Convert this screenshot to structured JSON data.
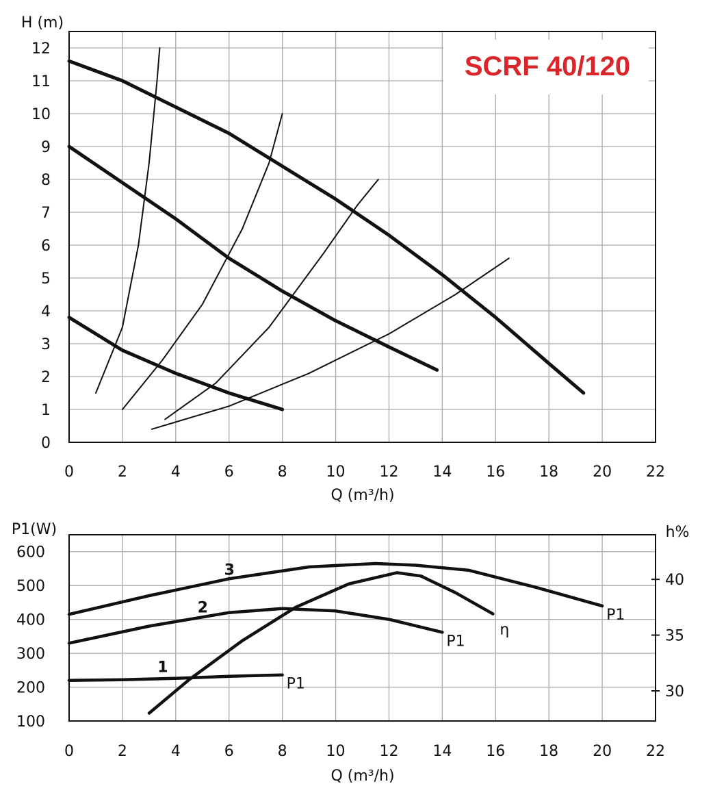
{
  "chart_data": [
    {
      "type": "line",
      "title": "SCRF 40/120",
      "xlabel": "Q (m³/h)",
      "ylabel": "H (m)",
      "xlim": [
        0,
        22
      ],
      "ylim": [
        0,
        12.5
      ],
      "x_ticks": [
        "0",
        "2",
        "4",
        "6",
        "8",
        "10",
        "12",
        "14",
        "16",
        "18",
        "20",
        "22"
      ],
      "y_ticks": [
        "0",
        "1",
        "2",
        "3",
        "4",
        "5",
        "6",
        "7",
        "8",
        "9",
        "10",
        "11",
        "12"
      ],
      "grid": true,
      "series": [
        {
          "x": [
            0,
            2,
            4,
            6,
            8,
            10,
            12,
            14,
            16,
            18,
            19.3
          ],
          "values": [
            11.6,
            11.0,
            10.2,
            9.4,
            8.4,
            7.4,
            6.3,
            5.1,
            3.8,
            2.4,
            1.5
          ]
        },
        {
          "x": [
            0,
            2,
            4,
            6,
            8,
            10,
            12,
            13.8
          ],
          "values": [
            9.0,
            7.9,
            6.8,
            5.6,
            4.6,
            3.7,
            2.9,
            2.2
          ]
        },
        {
          "x": [
            0,
            2,
            4,
            6,
            8
          ],
          "values": [
            3.8,
            2.8,
            2.1,
            1.5,
            1.0
          ]
        },
        {
          "x": [
            1.0,
            2.0,
            2.6,
            3.0,
            3.3,
            3.4
          ],
          "values": [
            1.5,
            3.5,
            6.0,
            8.5,
            11.0,
            12.0
          ]
        },
        {
          "x": [
            2.0,
            3.5,
            5.0,
            6.5,
            7.5,
            8.0
          ],
          "values": [
            1.0,
            2.5,
            4.2,
            6.5,
            8.5,
            10.0
          ]
        },
        {
          "x": [
            3.6,
            5.5,
            7.5,
            9.5,
            10.8,
            11.6
          ],
          "values": [
            0.7,
            1.8,
            3.5,
            5.7,
            7.2,
            8.0
          ]
        },
        {
          "x": [
            3.1,
            6.0,
            9.0,
            12.0,
            14.5,
            16.5
          ],
          "values": [
            0.4,
            1.1,
            2.1,
            3.3,
            4.5,
            5.6
          ]
        }
      ]
    },
    {
      "type": "line",
      "xlabel": "Q (m³/h)",
      "ylabel": "P1(W)",
      "y2label": "h%",
      "xlim": [
        0,
        22
      ],
      "ylim": [
        100,
        650
      ],
      "y2lim": [
        27.3,
        44
      ],
      "x_ticks": [
        "0",
        "2",
        "4",
        "6",
        "8",
        "10",
        "12",
        "14",
        "16",
        "18",
        "20",
        "22"
      ],
      "y_ticks": [
        "100",
        "200",
        "300",
        "400",
        "500",
        "600"
      ],
      "y2_ticks": [
        "30",
        "35",
        "40"
      ],
      "grid": true,
      "series": [
        {
          "name": "3",
          "end_label": "P1",
          "x": [
            0,
            3,
            6,
            9,
            11.5,
            13,
            15,
            17.5,
            20
          ],
          "values": [
            415,
            470,
            520,
            555,
            565,
            560,
            545,
            495,
            440
          ]
        },
        {
          "name": "2",
          "end_label": "P1",
          "x": [
            0,
            3,
            6,
            8,
            10,
            12,
            14
          ],
          "values": [
            330,
            380,
            420,
            432,
            425,
            400,
            362
          ]
        },
        {
          "name": "1",
          "end_label": "P1",
          "x": [
            0,
            2,
            4,
            6,
            8
          ],
          "values": [
            220,
            222,
            226,
            232,
            236
          ]
        },
        {
          "name": "",
          "end_label": "η",
          "axis": "right",
          "x": [
            3.0,
            4.5,
            6.5,
            8.5,
            10.5,
            12.3,
            13.2,
            14.5,
            15.9
          ],
          "values": [
            28.0,
            31.0,
            34.5,
            37.5,
            39.6,
            40.6,
            40.3,
            38.8,
            36.9
          ]
        }
      ]
    }
  ]
}
